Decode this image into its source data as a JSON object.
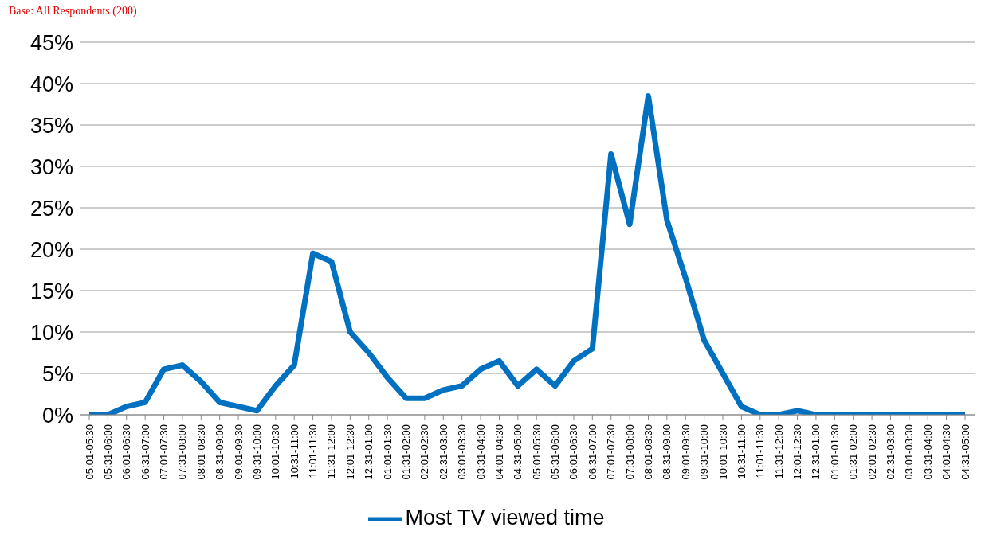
{
  "chart_data": {
    "type": "line",
    "annotations": [
      "Base: All Respondents  (200)"
    ],
    "categories": [
      "05:01-05:30",
      "05:31-06:00",
      "06:01-06:30",
      "06:31-07:00",
      "07:01-07:30",
      "07:31-08:00",
      "08:01-08:30",
      "08:31-09:00",
      "09:01-09:30",
      "09:31-10:00",
      "10:01-10:30",
      "10:31-11:00",
      "11:01-11:30",
      "11:31-12:00",
      "12:01-12:30",
      "12:31-01:00",
      "01:01-01:30",
      "01:31-02:00",
      "02:01-02:30",
      "02:31-03:00",
      "03:01-03:30",
      "03:31-04:00",
      "04:01-04:30",
      "04:31-05:00",
      "05:01-05:30",
      "05:31-06:00",
      "06:01-06:30",
      "06:31-07:00",
      "07:01-07:30",
      "07:31-08:00",
      "08:01-08:30",
      "08:31-09:00",
      "09:01-09:30",
      "09:31-10:00",
      "10:01-10:30",
      "10:31-11:00",
      "11:01-11:30",
      "11:31-12:00",
      "12:01-12:30",
      "12:31-01:00",
      "01:01-01:30",
      "01:31-02:00",
      "02:01-02:30",
      "02:31-03:00",
      "03:01-03:30",
      "03:31-04:00",
      "04:01-04:30",
      "04:31-05:00"
    ],
    "series": [
      {
        "name": "Most TV viewed time",
        "color": "#0070c0",
        "values": [
          0,
          0,
          1,
          1.5,
          5.5,
          6,
          4,
          1.5,
          1,
          0.5,
          3.5,
          6,
          19.5,
          18.5,
          10,
          7.5,
          4.5,
          2,
          2,
          3,
          3.5,
          5.5,
          6.5,
          3.5,
          5.5,
          3.5,
          6.5,
          8,
          31.5,
          23,
          38.5,
          23.5,
          16.5,
          9,
          5,
          1,
          0,
          0,
          0.5,
          0,
          0,
          0,
          0,
          0,
          0,
          0,
          0,
          0
        ]
      }
    ],
    "ylim": [
      0,
      45
    ],
    "yticks": [
      {
        "value": 0,
        "label": "0%"
      },
      {
        "value": 5,
        "label": "5%"
      },
      {
        "value": 10,
        "label": "10%"
      },
      {
        "value": 15,
        "label": "15%"
      },
      {
        "value": 20,
        "label": "20%"
      },
      {
        "value": 25,
        "label": "25%"
      },
      {
        "value": 30,
        "label": "30%"
      },
      {
        "value": 35,
        "label": "35%"
      },
      {
        "value": 40,
        "label": "40%"
      },
      {
        "value": 45,
        "label": "45%"
      }
    ],
    "grid": "y",
    "legend": "bottom",
    "marker": "none",
    "line_style": "solid"
  }
}
